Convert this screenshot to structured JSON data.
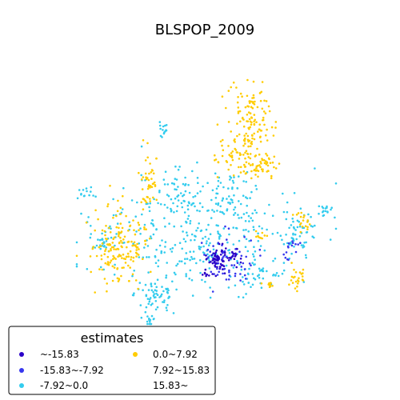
{
  "chart_data": {
    "type": "scatter",
    "title": "BLSPOP_2009",
    "xlabel": "",
    "ylabel": "",
    "grid": false,
    "axes_visible": false,
    "legend_placement": "bottom-left",
    "legend": {
      "title": "estimates",
      "entries": [
        {
          "label": "~-15.83",
          "color": "#2a00c8",
          "shown": true
        },
        {
          "label": "-15.83~-7.92",
          "color": "#3737ee",
          "shown": true
        },
        {
          "label": "-7.92~0.0",
          "color": "#33ccee",
          "shown": true
        },
        {
          "label": "0.0~7.92",
          "color": "#ffcc00",
          "shown": true
        },
        {
          "label": "7.92~15.83",
          "color": "#ff8800",
          "shown": false
        },
        {
          "label": "15.83~",
          "color": "#ee2200",
          "shown": false
        }
      ]
    },
    "series": [
      {
        "name": "~-15.83",
        "color": "#2a00c8",
        "clusters": [
          {
            "cx": 272,
            "cy": 324,
            "rx": 10,
            "ry": 14,
            "n": 60
          },
          {
            "cx": 290,
            "cy": 318,
            "rx": 12,
            "ry": 10,
            "n": 20
          },
          {
            "cx": 258,
            "cy": 343,
            "rx": 6,
            "ry": 5,
            "n": 8
          }
        ]
      },
      {
        "name": "-15.83~-7.92",
        "color": "#3737ee",
        "clusters": [
          {
            "cx": 283,
            "cy": 325,
            "rx": 28,
            "ry": 32,
            "n": 60
          },
          {
            "cx": 365,
            "cy": 305,
            "rx": 8,
            "ry": 7,
            "n": 10
          },
          {
            "cx": 358,
            "cy": 322,
            "rx": 5,
            "ry": 5,
            "n": 5
          }
        ]
      },
      {
        "name": "-7.92~0.0",
        "color": "#33ccee",
        "clusters": [
          {
            "cx": 245,
            "cy": 295,
            "rx": 120,
            "ry": 60,
            "n": 330
          },
          {
            "cx": 195,
            "cy": 370,
            "rx": 25,
            "ry": 25,
            "n": 60
          },
          {
            "cx": 220,
            "cy": 235,
            "rx": 25,
            "ry": 25,
            "n": 40
          },
          {
            "cx": 290,
            "cy": 245,
            "rx": 35,
            "ry": 30,
            "n": 60
          },
          {
            "cx": 375,
            "cy": 290,
            "rx": 22,
            "ry": 22,
            "n": 50
          },
          {
            "cx": 203,
            "cy": 160,
            "rx": 7,
            "ry": 12,
            "n": 14
          },
          {
            "cx": 105,
            "cy": 243,
            "rx": 9,
            "ry": 6,
            "n": 12
          },
          {
            "cx": 405,
            "cy": 263,
            "rx": 12,
            "ry": 8,
            "n": 16
          },
          {
            "cx": 186,
            "cy": 397,
            "rx": 8,
            "ry": 10,
            "n": 12
          },
          {
            "cx": 130,
            "cy": 300,
            "rx": 15,
            "ry": 15,
            "n": 25
          },
          {
            "cx": 320,
            "cy": 345,
            "rx": 30,
            "ry": 20,
            "n": 40
          }
        ]
      },
      {
        "name": "0.0~7.92",
        "color": "#ffcc00",
        "clusters": [
          {
            "cx": 312,
            "cy": 150,
            "rx": 25,
            "ry": 45,
            "n": 120
          },
          {
            "cx": 295,
            "cy": 195,
            "rx": 25,
            "ry": 25,
            "n": 60
          },
          {
            "cx": 330,
            "cy": 205,
            "rx": 20,
            "ry": 15,
            "n": 45
          },
          {
            "cx": 145,
            "cy": 310,
            "rx": 30,
            "ry": 45,
            "n": 140
          },
          {
            "cx": 188,
            "cy": 225,
            "rx": 12,
            "ry": 32,
            "n": 45
          },
          {
            "cx": 170,
            "cy": 310,
            "rx": 12,
            "ry": 20,
            "n": 25
          },
          {
            "cx": 378,
            "cy": 278,
            "rx": 10,
            "ry": 10,
            "n": 18
          },
          {
            "cx": 373,
            "cy": 348,
            "rx": 12,
            "ry": 12,
            "n": 25
          },
          {
            "cx": 325,
            "cy": 295,
            "rx": 8,
            "ry": 5,
            "n": 10
          },
          {
            "cx": 340,
            "cy": 355,
            "rx": 10,
            "ry": 5,
            "n": 10
          }
        ]
      }
    ]
  }
}
